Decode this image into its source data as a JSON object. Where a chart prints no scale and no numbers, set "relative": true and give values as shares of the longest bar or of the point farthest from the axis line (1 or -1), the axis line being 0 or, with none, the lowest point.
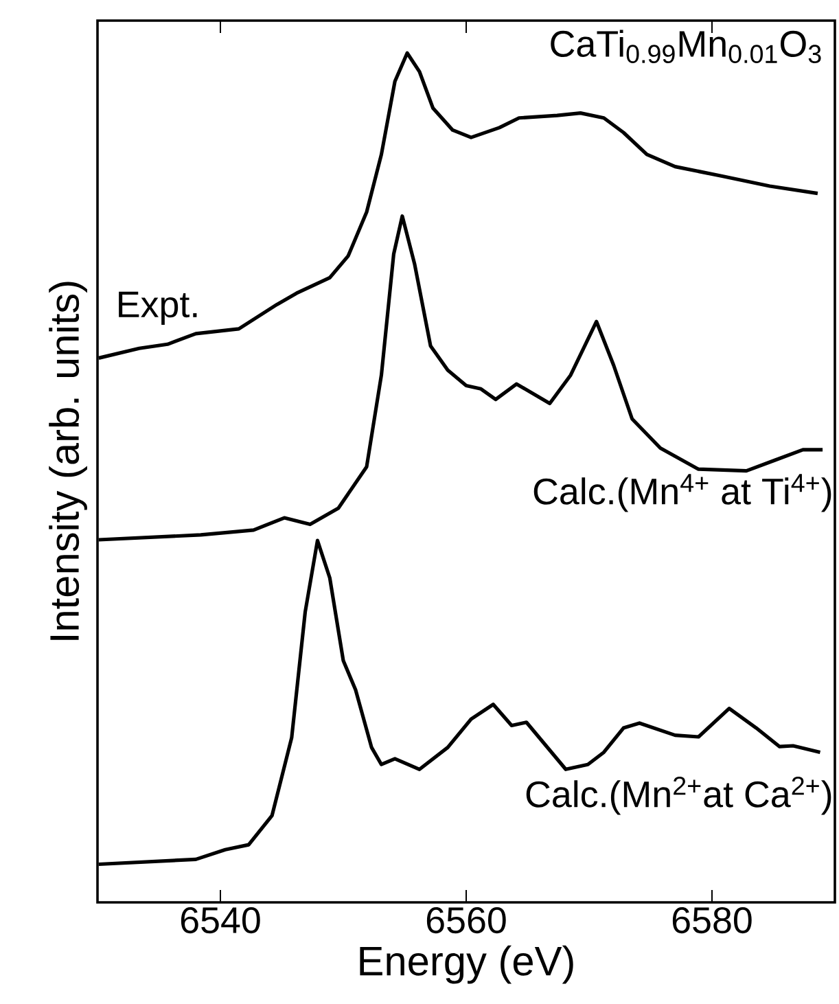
{
  "chart_data": {
    "type": "line",
    "relative": true,
    "xlabel": "Energy (eV)",
    "ylabel": "Intensity (arb. units)",
    "xlim": [
      6530,
      6590
    ],
    "xticks": [
      6540,
      6560,
      6580
    ],
    "annotations": [
      "CaTi$_{0.99}$Mn$_{0.01}$O$_{3}$"
    ],
    "series": [
      {
        "name": "Expt.",
        "color": "#000000",
        "x": [
          6530.1,
          6533.4,
          6535.7,
          6538.0,
          6541.5,
          6544.6,
          6546.2,
          6548.9,
          6550.4,
          6551.9,
          6553.1,
          6554.2,
          6555.2,
          6556.2,
          6557.3,
          6558.9,
          6560.4,
          6562.7,
          6564.3,
          6567.4,
          6569.3,
          6571.2,
          6572.8,
          6574.7,
          6577.0,
          6580.9,
          6584.7,
          6588.6
        ],
        "values": [
          0.624,
          0.636,
          0.641,
          0.654,
          0.66,
          0.69,
          0.704,
          0.723,
          0.75,
          0.804,
          0.875,
          0.965,
          1.0,
          0.977,
          0.932,
          0.905,
          0.896,
          0.908,
          0.92,
          0.923,
          0.926,
          0.92,
          0.902,
          0.875,
          0.86,
          0.848,
          0.836,
          0.827
        ]
      },
      {
        "name": "Calc.(Mn$^{4+}$ at Ti$^{4+}$)",
        "color": "#000000",
        "x": [
          6530.1,
          6538.4,
          6542.7,
          6545.2,
          6547.3,
          6549.6,
          6551.9,
          6553.1,
          6554.1,
          6554.8,
          6555.8,
          6557.1,
          6558.5,
          6560.0,
          6561.2,
          6562.4,
          6564.1,
          6566.8,
          6568.5,
          6570.6,
          6572.0,
          6573.5,
          6575.8,
          6578.9,
          6582.8,
          6585.1,
          6587.4,
          6589.0
        ],
        "values": [
          0.4,
          0.406,
          0.412,
          0.427,
          0.419,
          0.439,
          0.49,
          0.603,
          0.752,
          0.799,
          0.74,
          0.639,
          0.609,
          0.59,
          0.586,
          0.573,
          0.592,
          0.568,
          0.603,
          0.669,
          0.615,
          0.549,
          0.513,
          0.487,
          0.485,
          0.498,
          0.511,
          0.511
        ]
      },
      {
        "name": "Calc.(Mn$^{2+}$at Ca$^{2+}$)",
        "color": "#000000",
        "x": [
          6530.1,
          6538.0,
          6540.4,
          6542.3,
          6544.2,
          6545.8,
          6546.9,
          6547.9,
          6548.9,
          6550.0,
          6551.0,
          6552.3,
          6553.1,
          6554.2,
          6556.2,
          6558.5,
          6560.4,
          6562.2,
          6563.7,
          6564.9,
          6568.1,
          6569.9,
          6571.2,
          6572.8,
          6574.1,
          6577.0,
          6578.9,
          6581.4,
          6583.6,
          6585.5,
          6586.6,
          6588.8
        ],
        "values": [
          0.0,
          0.006,
          0.018,
          0.024,
          0.06,
          0.156,
          0.311,
          0.399,
          0.353,
          0.251,
          0.215,
          0.144,
          0.123,
          0.13,
          0.117,
          0.144,
          0.179,
          0.197,
          0.171,
          0.175,
          0.117,
          0.123,
          0.138,
          0.168,
          0.174,
          0.159,
          0.157,
          0.192,
          0.168,
          0.145,
          0.146,
          0.138
        ]
      }
    ]
  }
}
